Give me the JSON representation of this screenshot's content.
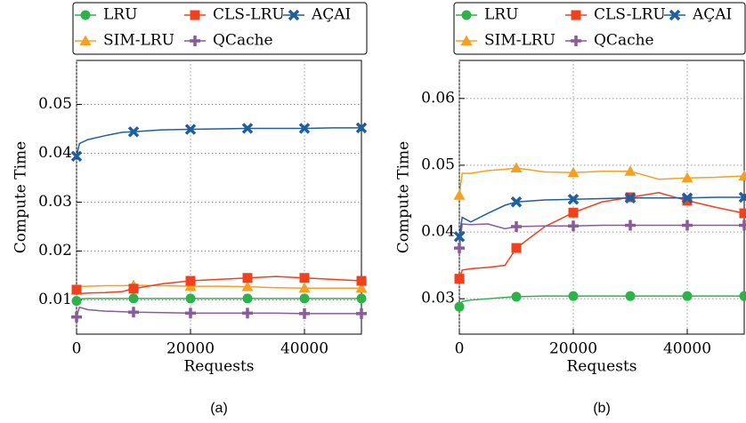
{
  "chart_data": [
    {
      "type": "line",
      "caption": "(a)",
      "x_label": "Requests",
      "y_label": "Compute Time",
      "x": [
        0,
        500,
        2000,
        5000,
        8000,
        10000,
        15000,
        20000,
        25000,
        30000,
        35000,
        40000,
        45000,
        50000
      ],
      "xlim": [
        0,
        50000
      ],
      "ylim": [
        0.003,
        0.059
      ],
      "xticks": [
        0,
        20000,
        40000
      ],
      "yticks": [
        0.01,
        0.02,
        0.03,
        0.04,
        0.05
      ],
      "grid": true,
      "series": [
        {
          "name": "LRU",
          "color": "#2db24a",
          "marker": "circle",
          "values": [
            0.0098,
            0.0102,
            0.0103,
            0.0103,
            0.0103,
            0.0103,
            0.0103,
            0.0103,
            0.0103,
            0.0103,
            0.0103,
            0.0103,
            0.0103,
            0.0103
          ]
        },
        {
          "name": "SIM-LRU",
          "color": "#f5a020",
          "marker": "triangle",
          "values": [
            0.012,
            0.0128,
            0.0128,
            0.0129,
            0.0129,
            0.013,
            0.0129,
            0.0128,
            0.0128,
            0.0127,
            0.0125,
            0.0124,
            0.0124,
            0.0124
          ]
        },
        {
          "name": "CLS-LRU",
          "color": "#f0401c",
          "marker": "square",
          "values": [
            0.0121,
            0.0113,
            0.0114,
            0.0115,
            0.0117,
            0.0123,
            0.0133,
            0.0139,
            0.0142,
            0.0145,
            0.0148,
            0.0145,
            0.0142,
            0.0139
          ]
        },
        {
          "name": "QCache",
          "color": "#8a5a9c",
          "marker": "plus",
          "values": [
            0.0065,
            0.0085,
            0.008,
            0.0077,
            0.0076,
            0.0075,
            0.0074,
            0.0073,
            0.0073,
            0.0073,
            0.0073,
            0.0072,
            0.0072,
            0.0072
          ]
        },
        {
          "name": "AÇAI",
          "color": "#1f5f9e",
          "marker": "x",
          "values": [
            0.0394,
            0.042,
            0.0428,
            0.0436,
            0.0443,
            0.0444,
            0.0448,
            0.0449,
            0.045,
            0.0451,
            0.0451,
            0.0451,
            0.0452,
            0.0452
          ]
        }
      ]
    },
    {
      "type": "line",
      "caption": "(b)",
      "x_label": "Requests",
      "y_label": "Compute Time",
      "x": [
        0,
        500,
        2000,
        5000,
        8000,
        10000,
        15000,
        20000,
        25000,
        30000,
        35000,
        40000,
        45000,
        50000
      ],
      "xlim": [
        0,
        50000
      ],
      "ylim": [
        0.0247,
        0.0657
      ],
      "xticks": [
        0,
        20000,
        40000
      ],
      "yticks": [
        0.03,
        0.04,
        0.05,
        0.06
      ],
      "grid": true,
      "series": [
        {
          "name": "LRU",
          "color": "#2db24a",
          "marker": "circle",
          "values": [
            0.0288,
            0.0296,
            0.0298,
            0.03,
            0.0302,
            0.0303,
            0.0304,
            0.0304,
            0.0304,
            0.0304,
            0.0304,
            0.0304,
            0.0304,
            0.0304
          ]
        },
        {
          "name": "SIM-LRU",
          "color": "#f5a020",
          "marker": "triangle",
          "values": [
            0.0455,
            0.0488,
            0.0488,
            0.0492,
            0.0494,
            0.0496,
            0.049,
            0.0489,
            0.0491,
            0.0491,
            0.0479,
            0.0481,
            0.0482,
            0.0484
          ]
        },
        {
          "name": "CLS-LRU",
          "color": "#f0401c",
          "marker": "square",
          "values": [
            0.033,
            0.0343,
            0.0345,
            0.0347,
            0.035,
            0.0376,
            0.0408,
            0.0429,
            0.0445,
            0.0452,
            0.0459,
            0.0447,
            0.0437,
            0.0428
          ]
        },
        {
          "name": "QCache",
          "color": "#8a5a9c",
          "marker": "plus",
          "values": [
            0.0376,
            0.0412,
            0.0411,
            0.0412,
            0.0405,
            0.0408,
            0.0409,
            0.0409,
            0.041,
            0.041,
            0.041,
            0.041,
            0.041,
            0.041
          ]
        },
        {
          "name": "AÇAI",
          "color": "#1f5f9e",
          "marker": "x",
          "values": [
            0.0393,
            0.0422,
            0.0415,
            0.0428,
            0.044,
            0.0445,
            0.0448,
            0.0449,
            0.045,
            0.0451,
            0.0451,
            0.0451,
            0.0452,
            0.0452
          ]
        }
      ]
    }
  ]
}
